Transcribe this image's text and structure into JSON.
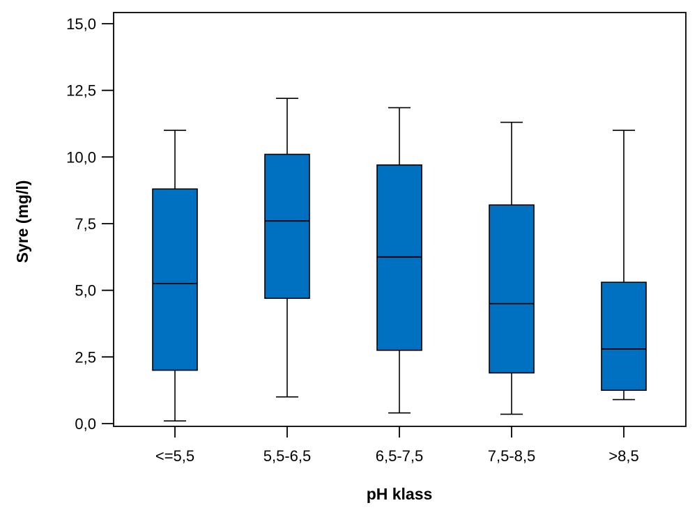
{
  "chart_data": {
    "type": "boxplot",
    "xlabel": "pH klass",
    "ylabel": "Syre (mg/l)",
    "ylim": [
      0,
      15
    ],
    "yticks": [
      "0,0",
      "2,5",
      "5,0",
      "7,5",
      "10,0",
      "12,5",
      "15,0"
    ],
    "ytick_values": [
      0,
      2.5,
      5,
      7.5,
      10,
      12.5,
      15
    ],
    "categories": [
      "<=5,5",
      "5,5-6,5",
      "6,5-7,5",
      "7,5-8,5",
      ">8,5"
    ],
    "boxes": [
      {
        "whisker_low": 0.1,
        "q1": 2.0,
        "median": 5.25,
        "q3": 8.8,
        "whisker_high": 11.0
      },
      {
        "whisker_low": 1.0,
        "q1": 4.7,
        "median": 7.6,
        "q3": 10.1,
        "whisker_high": 12.2
      },
      {
        "whisker_low": 0.4,
        "q1": 2.75,
        "median": 6.25,
        "q3": 9.7,
        "whisker_high": 11.85
      },
      {
        "whisker_low": 0.35,
        "q1": 1.9,
        "median": 4.5,
        "q3": 8.2,
        "whisker_high": 11.3
      },
      {
        "whisker_low": 0.9,
        "q1": 1.25,
        "median": 2.8,
        "q3": 5.3,
        "whisker_high": 11.0
      }
    ],
    "box_color": "#0070C0",
    "grid": false,
    "legend": "none"
  }
}
